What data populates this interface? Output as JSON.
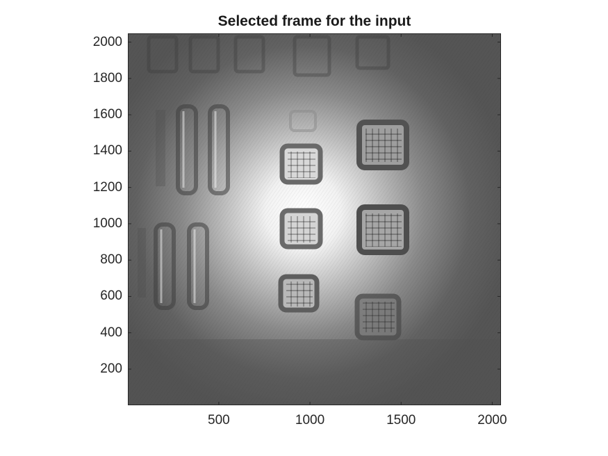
{
  "figure": {
    "title": "Selected frame for the input"
  },
  "axes": {
    "xticks": [
      "500",
      "1000",
      "1500",
      "2000"
    ],
    "yticks": [
      "2000",
      "1800",
      "1600",
      "1400",
      "1200",
      "1000",
      "800",
      "600",
      "400",
      "200"
    ],
    "xlim": [
      1,
      2048
    ],
    "ylim": [
      1,
      2048
    ]
  },
  "image": {
    "colormap": "gray"
  }
}
